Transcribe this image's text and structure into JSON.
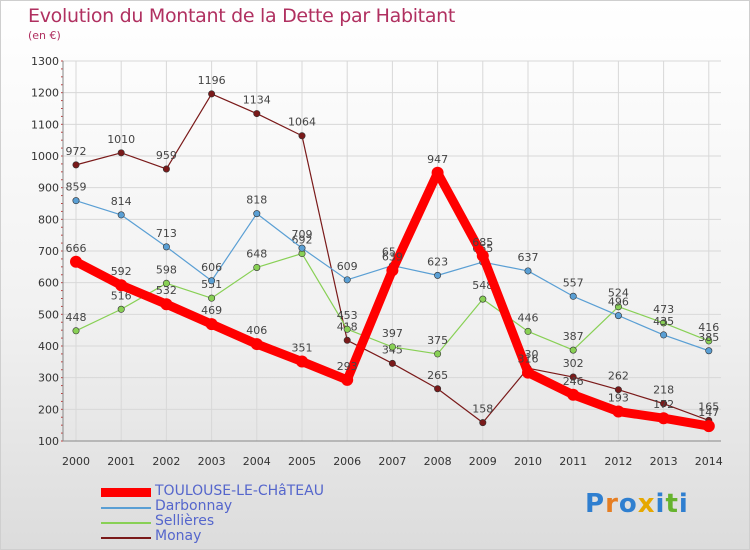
{
  "title": "Evolution du Montant de la Dette par Habitant",
  "subtitle": "(en €)",
  "logo": {
    "letters": [
      "P",
      "r",
      "o",
      "x",
      "i",
      "t",
      "i"
    ],
    "colors": [
      "#2f7fd0",
      "#e67e22",
      "#2f7fd0",
      "#e6a800",
      "#2f7fd0",
      "#66b32e",
      "#2f7fd0"
    ]
  },
  "chart_data": {
    "type": "line",
    "x": [
      2000,
      2001,
      2002,
      2003,
      2004,
      2005,
      2006,
      2007,
      2008,
      2009,
      2010,
      2011,
      2012,
      2013,
      2014
    ],
    "ylim": [
      100,
      1300
    ],
    "yticks": [
      100,
      200,
      300,
      400,
      500,
      600,
      700,
      800,
      900,
      1000,
      1100,
      1200,
      1300
    ],
    "grid": true,
    "legend": "bottom-left",
    "series": [
      {
        "name": "Monay",
        "color": "#7a1a1a",
        "values": [
          972,
          1010,
          959,
          1196,
          1134,
          1064,
          418,
          345,
          265,
          158,
          330,
          302,
          262,
          218,
          165
        ]
      },
      {
        "name": "Sellières",
        "color": "#88d055",
        "values": [
          448,
          516,
          598,
          551,
          648,
          692,
          453,
          397,
          375,
          548,
          446,
          387,
          524,
          473,
          416
        ]
      },
      {
        "name": "Darbonnay",
        "color": "#5a9fd4",
        "values": [
          859,
          814,
          713,
          606,
          818,
          709,
          609,
          654,
          623,
          665,
          637,
          557,
          496,
          435,
          385
        ]
      },
      {
        "name": "TOULOUSE-LE-CHâTEAU",
        "color": "#ff0000",
        "values": [
          666,
          592,
          532,
          469,
          406,
          351,
          293,
          639,
          947,
          685,
          316,
          246,
          193,
          172,
          147
        ]
      }
    ]
  }
}
